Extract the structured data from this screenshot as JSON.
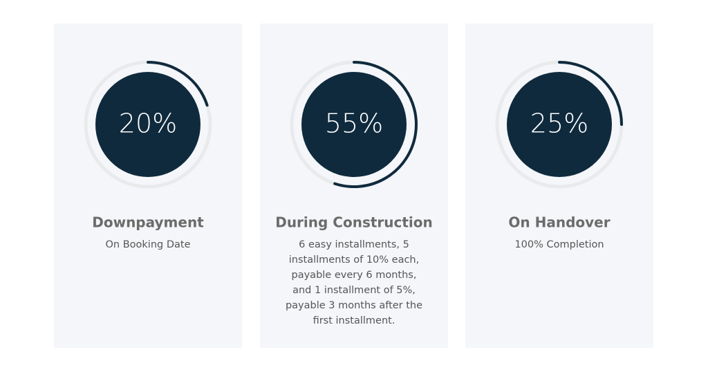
{
  "cards": [
    {
      "percent": {
        "value": 20,
        "label": "20%"
      },
      "title": "Downpayment",
      "lines": [
        "On Booking Date"
      ]
    },
    {
      "percent": {
        "value": 55,
        "label": "55%"
      },
      "title": "During Construction",
      "lines": [
        "6 easy installments, 5",
        "installments of 10% each,",
        "payable every 6 months,",
        "and 1 installment of 5%,",
        "payable 3 months after the",
        "first installment."
      ]
    },
    {
      "percent": {
        "value": 25,
        "label": "25%"
      },
      "title": "On Handover",
      "lines": [
        "100% Completion"
      ]
    }
  ]
}
